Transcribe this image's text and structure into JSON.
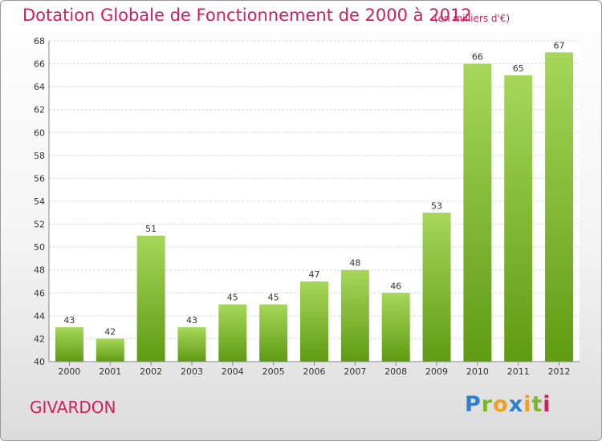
{
  "title": "Dotation Globale de Fonctionnement de 2000 à 2012",
  "unit_note": "(en milliers d'€)",
  "commune": "GIVARDON",
  "logo": {
    "letters": [
      {
        "ch": "P",
        "color": "#2f7fd0"
      },
      {
        "ch": "r",
        "color": "#78b82a"
      },
      {
        "ch": "o",
        "color": "#f0a020"
      },
      {
        "ch": "x",
        "color": "#2f7fd0"
      },
      {
        "ch": "i",
        "color": "#f0a020"
      },
      {
        "ch": "t",
        "color": "#78b82a"
      },
      {
        "ch": "i",
        "color": "#d01e5e"
      }
    ]
  },
  "colors": {
    "accent": "#d01e5e",
    "bar_light": "#a6d75a",
    "bar_dark": "#5f9b12"
  },
  "chart_data": {
    "type": "bar",
    "categories": [
      "2000",
      "2001",
      "2002",
      "2003",
      "2004",
      "2005",
      "2006",
      "2007",
      "2008",
      "2009",
      "2010",
      "2011",
      "2012"
    ],
    "values": [
      43,
      42,
      51,
      43,
      45,
      45,
      47,
      48,
      46,
      53,
      66,
      65,
      67
    ],
    "title": "Dotation Globale de Fonctionnement de 2000 à 2012",
    "ylim": [
      40,
      68
    ],
    "yticks": [
      40,
      42,
      44,
      46,
      48,
      50,
      52,
      54,
      56,
      58,
      60,
      62,
      64,
      66,
      68
    ],
    "grid": true,
    "legend": "none"
  }
}
